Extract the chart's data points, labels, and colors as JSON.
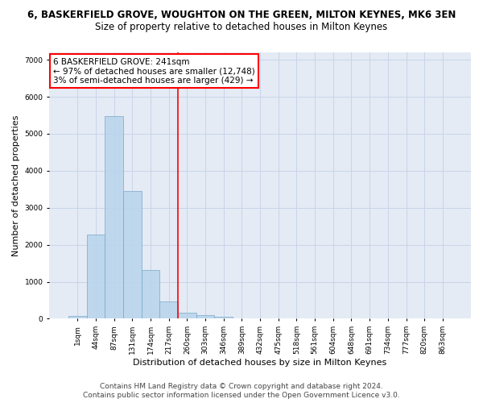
{
  "title": "6, BASKERFIELD GROVE, WOUGHTON ON THE GREEN, MILTON KEYNES, MK6 3EN",
  "subtitle": "Size of property relative to detached houses in Milton Keynes",
  "xlabel": "Distribution of detached houses by size in Milton Keynes",
  "ylabel": "Number of detached properties",
  "bin_labels": [
    "1sqm",
    "44sqm",
    "87sqm",
    "131sqm",
    "174sqm",
    "217sqm",
    "260sqm",
    "303sqm",
    "346sqm",
    "389sqm",
    "432sqm",
    "475sqm",
    "518sqm",
    "561sqm",
    "604sqm",
    "648sqm",
    "691sqm",
    "734sqm",
    "777sqm",
    "820sqm",
    "863sqm"
  ],
  "bar_heights": [
    80,
    2280,
    5470,
    3450,
    1310,
    470,
    160,
    90,
    50,
    0,
    0,
    0,
    0,
    0,
    0,
    0,
    0,
    0,
    0,
    0,
    0
  ],
  "bar_color": "#B8D4EC",
  "bar_edge_color": "#7AAAC8",
  "bar_alpha": 0.85,
  "vline_x": 5.5,
  "vline_color": "red",
  "annotation_text": "6 BASKERFIELD GROVE: 241sqm\n← 97% of detached houses are smaller (12,748)\n3% of semi-detached houses are larger (429) →",
  "annotation_box_color": "white",
  "annotation_box_edgecolor": "red",
  "ylim": [
    0,
    7200
  ],
  "yticks": [
    0,
    1000,
    2000,
    3000,
    4000,
    5000,
    6000,
    7000
  ],
  "grid_color": "#C8D4E8",
  "bg_color": "#E4EBF5",
  "footer_line1": "Contains HM Land Registry data © Crown copyright and database right 2024.",
  "footer_line2": "Contains public sector information licensed under the Open Government Licence v3.0.",
  "title_fontsize": 8.5,
  "subtitle_fontsize": 8.5,
  "axis_label_fontsize": 8,
  "tick_fontsize": 6.5,
  "annotation_fontsize": 7.5,
  "footer_fontsize": 6.5
}
